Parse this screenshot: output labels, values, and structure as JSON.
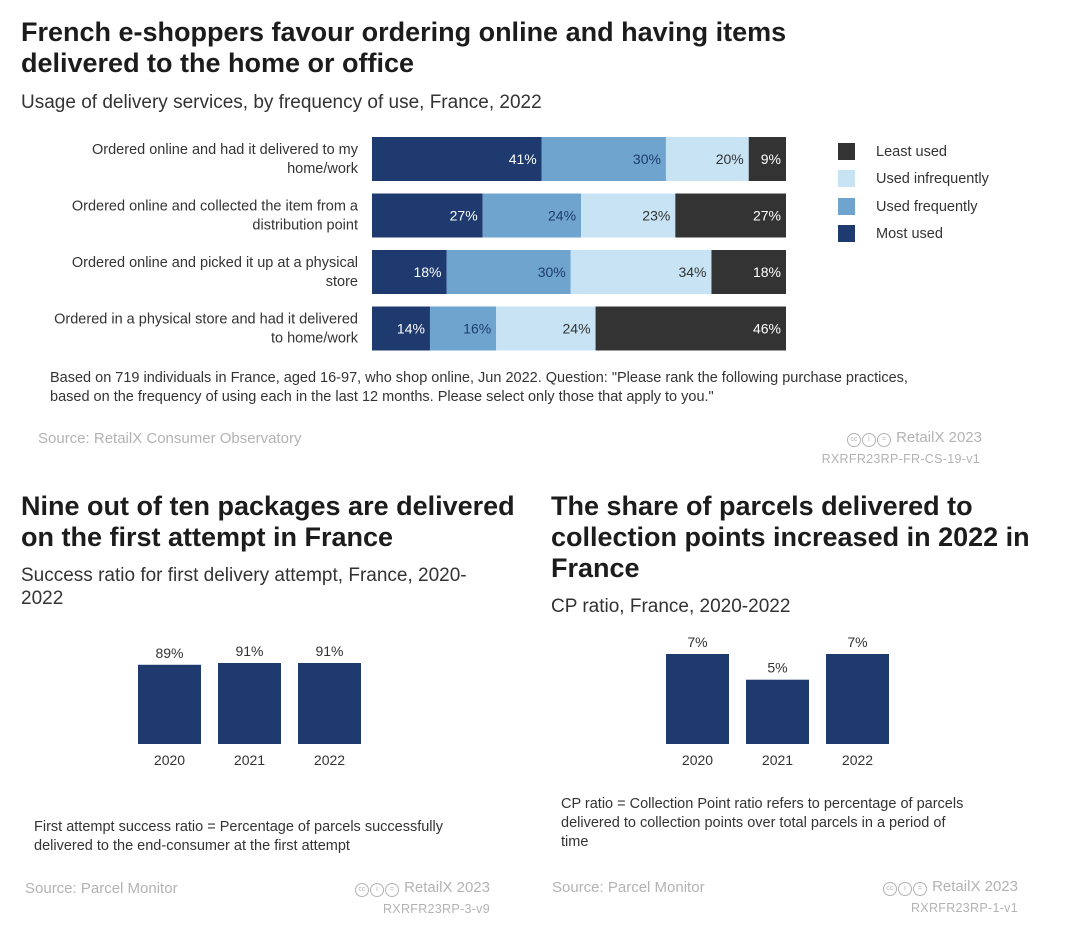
{
  "colors": {
    "most_used": "#1e3a6e",
    "used_frequently": "#6fa4cf",
    "used_infrequently": "#c7e3f4",
    "least_used": "#333333",
    "column": "#1e3a6e"
  },
  "top": {
    "title_line1": "French e-shoppers favour ordering online and having items",
    "title_line2": "delivered to the home or office",
    "subtitle": "Usage of delivery services, by frequency of use, France, 2022",
    "note_line1": "Based on 719 individuals in France, aged 16-97, who shop online, Jun 2022. Question: \"Please rank the following purchase practices,",
    "note_line2": "based on the frequency of using each in the last 12 months. Please select only those that apply to you.\"",
    "source": "Source: RetailX Consumer Observatory",
    "credit": "RetailX 2023",
    "code": "RXRFR23RP-FR-CS-19-v1"
  },
  "left": {
    "title_line1": "Nine out of ten packages are delivered",
    "title_line2": "on the first attempt in France",
    "subtitle_line1": "Success ratio for first delivery attempt, France, 2020-",
    "subtitle_line2": "2022",
    "note_line1": "First attempt success ratio = Percentage of parcels successfully",
    "note_line2": "delivered to the end-consumer at the first attempt",
    "source": "Source: Parcel Monitor",
    "credit": "RetailX 2023",
    "code": "RXRFR23RP-3-v9"
  },
  "right": {
    "title_line1": "The share of parcels delivered to",
    "title_line2": "collection points increased in 2022 in",
    "title_line3": "France",
    "subtitle": "CP ratio, France, 2020-2022",
    "note_line1": "CP ratio = Collection Point ratio refers to percentage of parcels",
    "note_line2": "delivered to collection points over total parcels in a period of",
    "note_line3": "time",
    "source": "Source: Parcel Monitor",
    "credit": "RetailX 2023",
    "code": "RXRFR23RP-1-v1"
  },
  "chart_data": [
    {
      "type": "bar",
      "orientation": "horizontal",
      "stacked": true,
      "title": "French e-shoppers favour ordering online and having items delivered to the home or office",
      "subtitle": "Usage of delivery services, by frequency of use, France, 2022",
      "unit": "%",
      "categories": [
        [
          "Ordered online and had it delivered to my",
          "home/work"
        ],
        [
          "Ordered online and collected the item from a",
          "distribution point"
        ],
        [
          "Ordered online and picked it up at a physical",
          "store"
        ],
        [
          "Ordered in a physical store and had it delivered",
          "to home/work"
        ]
      ],
      "series": [
        {
          "name": "Most used",
          "values": [
            41,
            27,
            18,
            14
          ]
        },
        {
          "name": "Used frequently",
          "values": [
            30,
            24,
            30,
            16
          ]
        },
        {
          "name": "Used infrequently",
          "values": [
            20,
            23,
            34,
            24
          ]
        },
        {
          "name": "Least used",
          "values": [
            9,
            27,
            18,
            46
          ]
        }
      ],
      "legend_order": [
        "Least used",
        "Used infrequently",
        "Used frequently",
        "Most used"
      ],
      "legend": "right"
    },
    {
      "type": "bar",
      "title": "Nine out of ten packages are delivered on the first attempt in France",
      "subtitle": "Success ratio for first delivery attempt, France, 2020-2022",
      "categories": [
        "2020",
        "2021",
        "2022"
      ],
      "values": [
        89,
        91,
        91
      ],
      "labels": [
        "89%",
        "91%",
        "91%"
      ],
      "unit": "%"
    },
    {
      "type": "bar",
      "title": "The share of parcels delivered to collection points increased in 2022 in France",
      "subtitle": "CP ratio, France, 2020-2022",
      "categories": [
        "2020",
        "2021",
        "2022"
      ],
      "values": [
        7,
        5,
        7
      ],
      "labels": [
        "7%",
        "5%",
        "7%"
      ],
      "unit": "%"
    }
  ]
}
